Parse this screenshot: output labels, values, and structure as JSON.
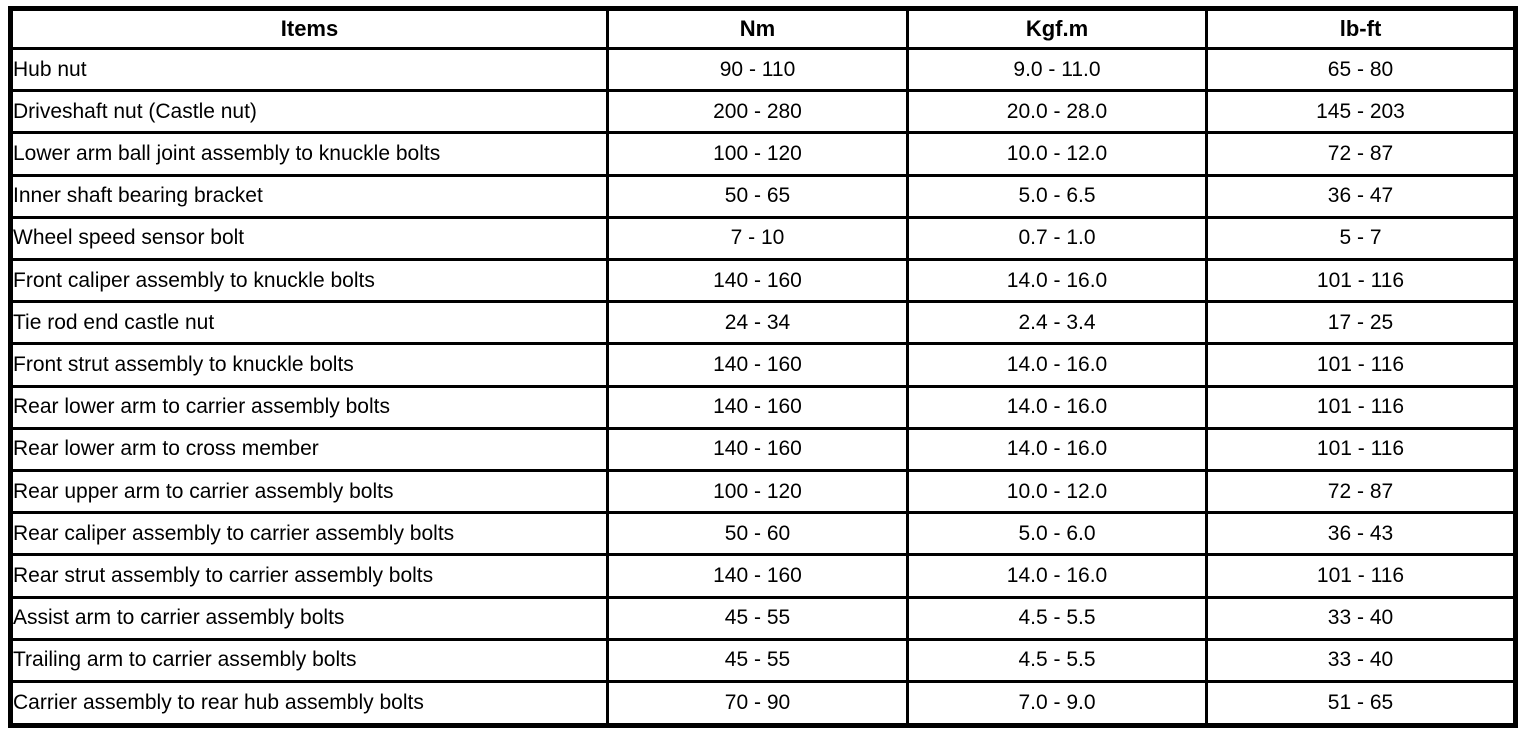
{
  "table": {
    "columns": [
      "Items",
      "Nm",
      "Kgf.m",
      "lb-ft"
    ],
    "rows": [
      [
        "Hub nut",
        "90 - 110",
        "9.0 - 11.0",
        "65 - 80"
      ],
      [
        "Driveshaft nut (Castle nut)",
        "200 - 280",
        "20.0 - 28.0",
        "145 - 203"
      ],
      [
        "Lower arm ball joint assembly to knuckle bolts",
        "100 - 120",
        "10.0 - 12.0",
        "72 - 87"
      ],
      [
        "Inner shaft bearing bracket",
        "50 - 65",
        "5.0 - 6.5",
        "36 - 47"
      ],
      [
        "Wheel speed sensor bolt",
        "7 - 10",
        "0.7 - 1.0",
        "5 - 7"
      ],
      [
        "Front caliper assembly to knuckle bolts",
        "140 - 160",
        "14.0 - 16.0",
        "101 - 116"
      ],
      [
        "Tie rod end castle nut",
        "24 - 34",
        "2.4 - 3.4",
        "17 - 25"
      ],
      [
        "Front strut assembly to knuckle bolts",
        "140 - 160",
        "14.0 - 16.0",
        "101 - 116"
      ],
      [
        "Rear lower arm to carrier assembly bolts",
        "140 - 160",
        "14.0 - 16.0",
        "101 - 116"
      ],
      [
        "Rear lower arm to cross member",
        "140 - 160",
        "14.0 - 16.0",
        "101 - 116"
      ],
      [
        "Rear upper arm to carrier assembly bolts",
        "100 - 120",
        "10.0 - 12.0",
        "72 - 87"
      ],
      [
        "Rear caliper assembly to carrier assembly bolts",
        "50 - 60",
        "5.0 - 6.0",
        "36 - 43"
      ],
      [
        "Rear strut assembly to carrier assembly bolts",
        "140 - 160",
        "14.0 - 16.0",
        "101 - 116"
      ],
      [
        "Assist arm to carrier assembly bolts",
        "45 - 55",
        "4.5 - 5.5",
        "33 - 40"
      ],
      [
        "Trailing arm to carrier assembly bolts",
        "45 - 55",
        "4.5 - 5.5",
        "33 - 40"
      ],
      [
        "Carrier assembly to rear hub assembly bolts",
        "70 - 90",
        "7.0 - 9.0",
        "51 - 65"
      ]
    ],
    "border_color": "#000000",
    "text_color": "#000000",
    "background_color": "#ffffff"
  }
}
